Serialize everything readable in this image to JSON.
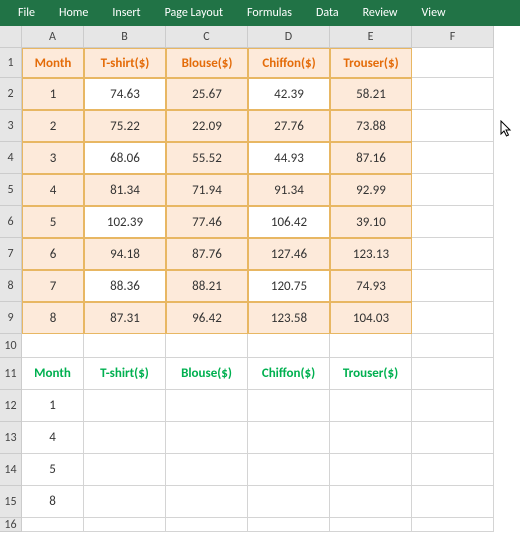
{
  "ribbon": {
    "tabs": [
      "File",
      "Home",
      "Insert",
      "Page Layout",
      "Formulas",
      "Data",
      "Review",
      "View"
    ]
  },
  "columns": {
    "letters": [
      "A",
      "B",
      "C",
      "D",
      "E",
      "F"
    ],
    "widths": [
      62,
      82,
      82,
      82,
      82,
      82
    ]
  },
  "row_heights": {
    "header": 30,
    "data": 32,
    "short": 24
  },
  "table1": {
    "headers": [
      "Month",
      "T-shirt($)",
      "Blouse($)",
      "Chiffon($)",
      "Trouser($)"
    ],
    "rows": [
      {
        "m": "1",
        "t": "74.63",
        "b": "25.67",
        "c": "42.39",
        "r": "58.21"
      },
      {
        "m": "2",
        "t": "75.22",
        "b": "22.09",
        "c": "27.76",
        "r": "73.88"
      },
      {
        "m": "3",
        "t": "68.06",
        "b": "55.52",
        "c": "44.93",
        "r": "87.16"
      },
      {
        "m": "4",
        "t": "81.34",
        "b": "71.94",
        "c": "91.34",
        "r": "92.99"
      },
      {
        "m": "5",
        "t": "102.39",
        "b": "77.46",
        "c": "106.42",
        "r": "39.10"
      },
      {
        "m": "6",
        "t": "94.18",
        "b": "87.76",
        "c": "127.46",
        "r": "123.13"
      },
      {
        "m": "7",
        "t": "88.36",
        "b": "88.21",
        "c": "120.75",
        "r": "74.93"
      },
      {
        "m": "8",
        "t": "87.31",
        "b": "96.42",
        "c": "123.58",
        "r": "104.03"
      }
    ]
  },
  "table2": {
    "headers": [
      "Month",
      "T-shirt($)",
      "Blouse($)",
      "Chiffon($)",
      "Trouser($)"
    ],
    "months": [
      "1",
      "4",
      "5",
      "8"
    ]
  },
  "row_labels": [
    "1",
    "2",
    "3",
    "4",
    "5",
    "6",
    "7",
    "8",
    "9",
    "10",
    "11",
    "12",
    "13",
    "14",
    "15",
    "16"
  ],
  "colors": {
    "ribbon_bg": "#217346",
    "header_text": "#e46c0a",
    "banded_bg": "#fdeada",
    "band_border": "#e8b763",
    "green_text": "#00b050"
  }
}
